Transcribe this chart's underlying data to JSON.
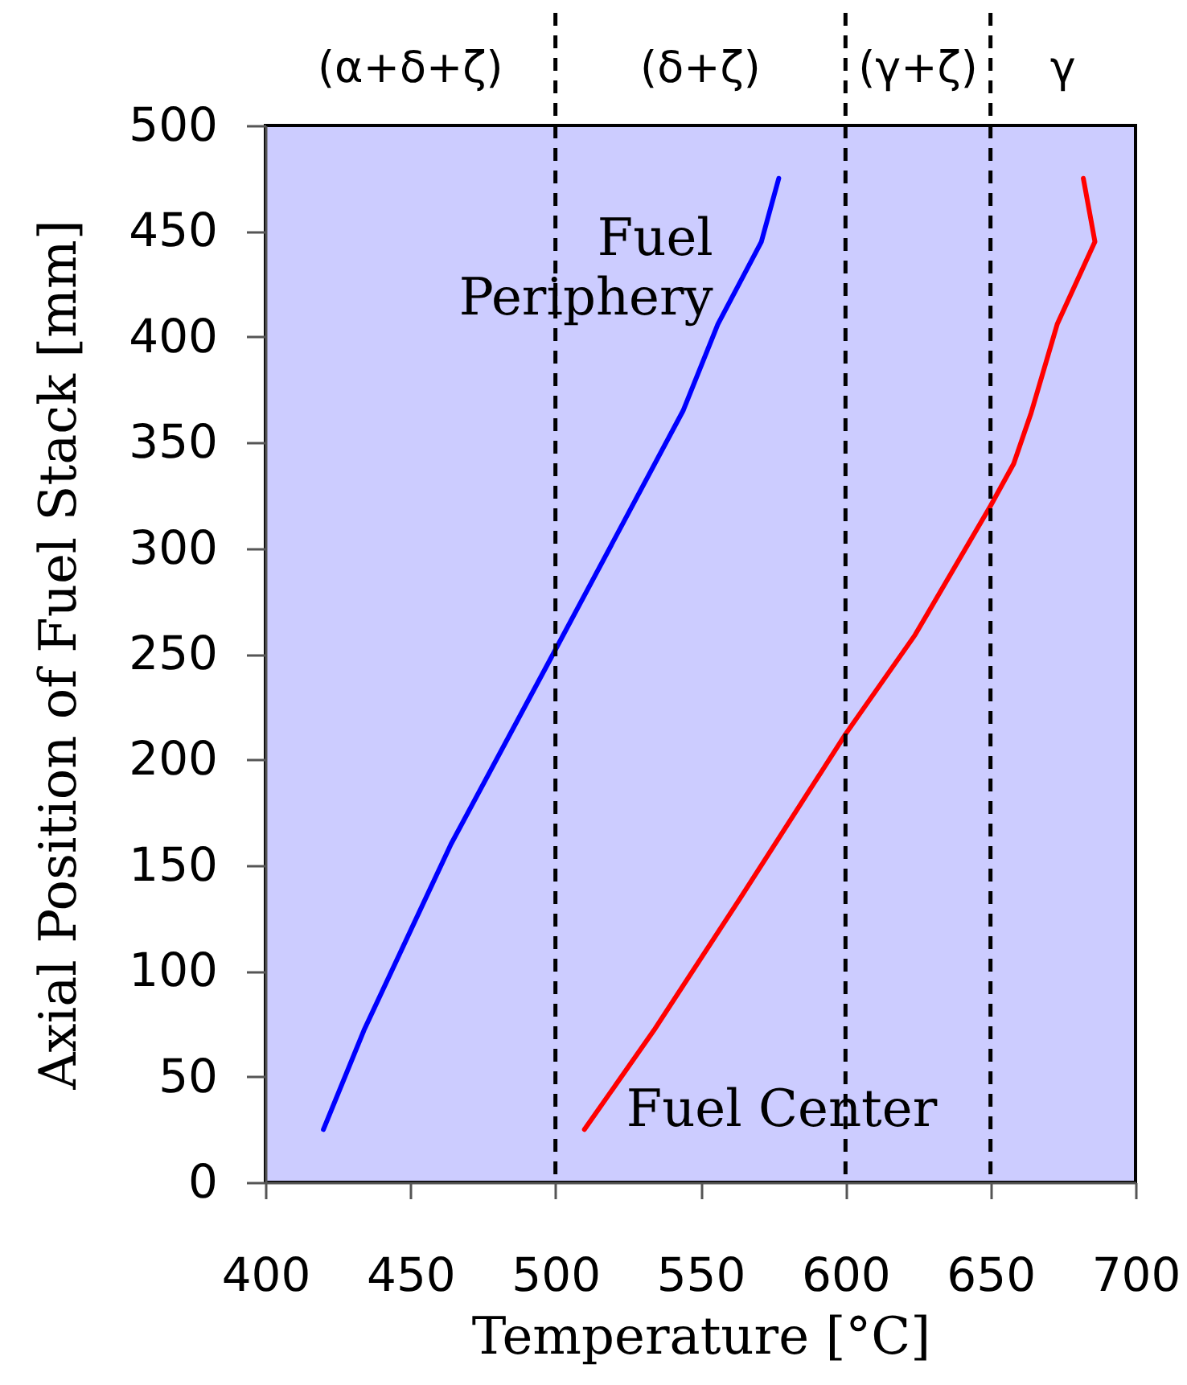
{
  "chart_data": {
    "type": "line",
    "xlabel": "Temperature [°C]",
    "ylabel": "Axial Position of Fuel Stack [mm]",
    "xlim": [
      400,
      700
    ],
    "xticks": [
      400,
      450,
      500,
      550,
      600,
      650,
      700
    ],
    "ylim": [
      0,
      500
    ],
    "yticks": [
      0,
      50,
      100,
      150,
      200,
      250,
      300,
      350,
      400,
      450,
      500
    ],
    "line_style": "solid",
    "series": [
      {
        "name": "Fuel Periphery",
        "color": "#0000ff",
        "x": [
          420,
          434,
          464,
          500,
          544,
          556,
          571,
          577
        ],
        "values": [
          25,
          72,
          160,
          252,
          365,
          406,
          445,
          475
        ]
      },
      {
        "name": "Fuel Center",
        "color": "#ff0000",
        "x": [
          510,
          534,
          564,
          600,
          624,
          650,
          658,
          664,
          673,
          686,
          682
        ],
        "values": [
          25,
          72,
          135,
          212,
          259,
          320,
          340,
          364,
          406,
          445,
          475
        ]
      }
    ],
    "ref_lines": [
      {
        "axis": "x",
        "value": 500,
        "color": "#000000",
        "line_style": "dashed"
      },
      {
        "axis": "x",
        "value": 600,
        "color": "#000000",
        "line_style": "dashed"
      },
      {
        "axis": "x",
        "value": 650,
        "color": "#000000",
        "line_style": "dashed"
      }
    ],
    "annotations": [
      "(α+δ+ζ)",
      "(δ+ζ)",
      "(γ+ζ)",
      "γ"
    ]
  }
}
